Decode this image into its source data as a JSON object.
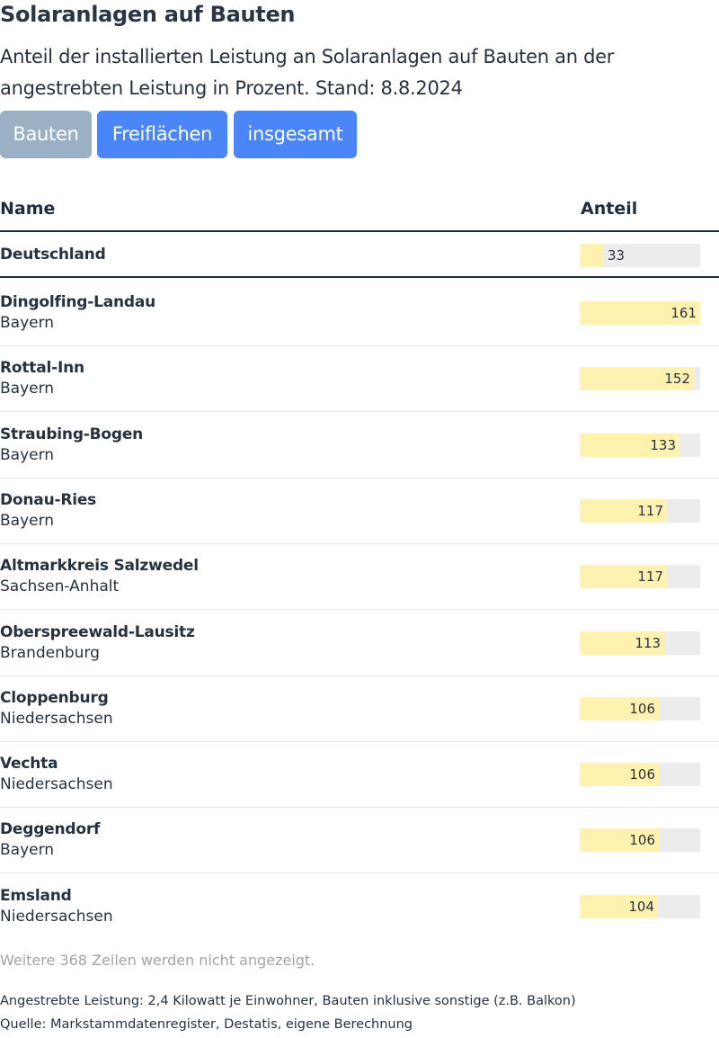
{
  "title": "Solaranlagen auf Bauten",
  "subtitle": "Anteil der installierten Leistung an Solaranlagen auf Bauten an der angestrebten Leistung in Prozent. Stand: 8.8.2024",
  "buttons": {
    "bauten": "Bauten",
    "freiflaechen": "Freiflächen",
    "insgesamt": "insgesamt",
    "active": "Bauten"
  },
  "colors": {
    "bar_fill": "#fff2b0",
    "bar_track": "#ececec",
    "button_active": "#9ab0c4",
    "button_inactive": "#4a86f7"
  },
  "chart_data": {
    "type": "table",
    "columns": [
      "Name",
      "Anteil"
    ],
    "bar_max": 161,
    "total_row": {
      "name": "Deutschland",
      "value": 33
    },
    "rows": [
      {
        "name": "Dingolfing-Landau",
        "region": "Bayern",
        "value": 161
      },
      {
        "name": "Rottal-Inn",
        "region": "Bayern",
        "value": 152
      },
      {
        "name": "Straubing-Bogen",
        "region": "Bayern",
        "value": 133
      },
      {
        "name": "Donau-Ries",
        "region": "Bayern",
        "value": 117
      },
      {
        "name": "Altmarkkreis Salzwedel",
        "region": "Sachsen-Anhalt",
        "value": 117
      },
      {
        "name": "Oberspreewald-Lausitz",
        "region": "Brandenburg",
        "value": 113
      },
      {
        "name": "Cloppenburg",
        "region": "Niedersachsen",
        "value": 106
      },
      {
        "name": "Vechta",
        "region": "Niedersachsen",
        "value": 106
      },
      {
        "name": "Deggendorf",
        "region": "Bayern",
        "value": 106
      },
      {
        "name": "Emsland",
        "region": "Niedersachsen",
        "value": 104
      }
    ]
  },
  "more_rows": "Weitere 368 Zeilen werden nicht angezeigt.",
  "note": "Angestrebte Leistung: 2,4 Kilowatt je Einwohner, Bauten inklusive sonstige (z.B. Balkon)",
  "source": "Quelle: Markstammdatenregister, Destatis, eigene Berechnung"
}
